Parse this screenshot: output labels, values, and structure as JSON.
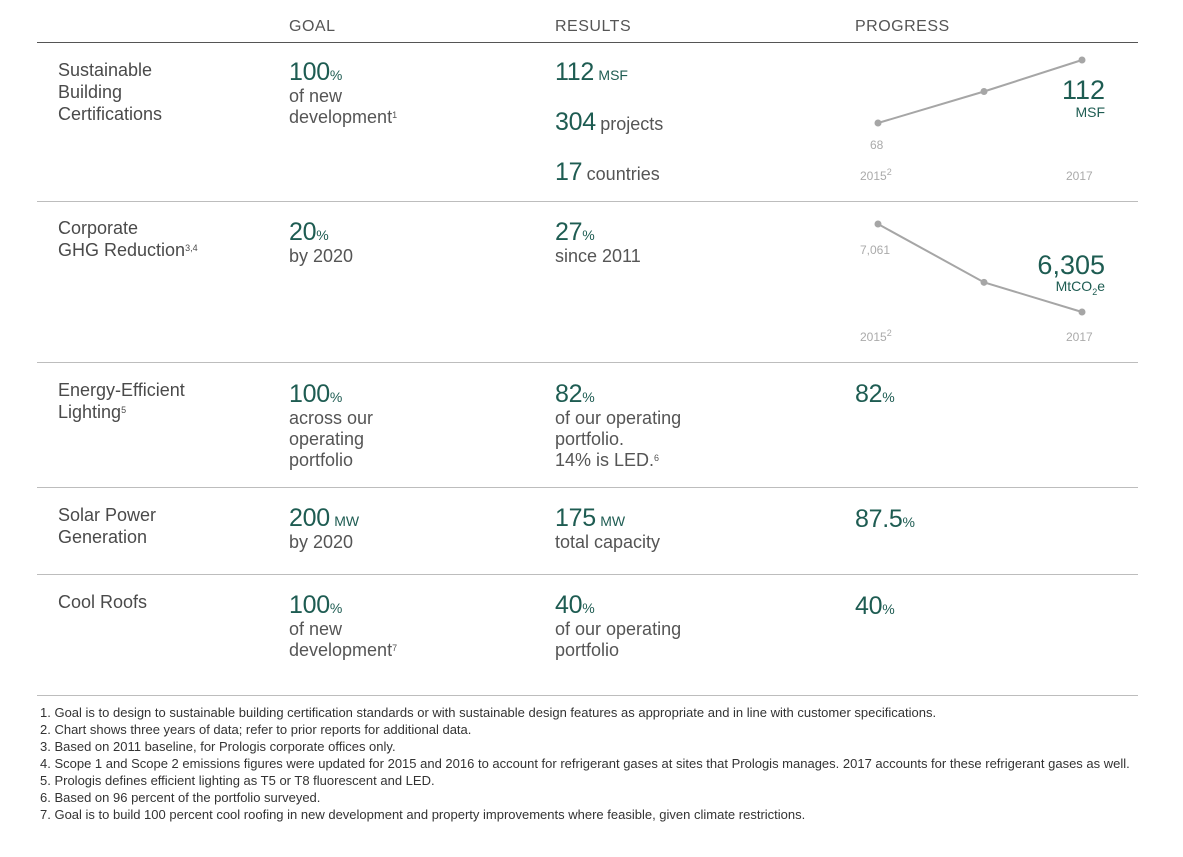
{
  "headers": {
    "goal": "GOAL",
    "results": "RESULTS",
    "progress": "PROGRESS"
  },
  "rows": {
    "certifications": {
      "label1": "Sustainable",
      "label2": "Building",
      "label3": "Certifications",
      "goal_value": "100",
      "goal_unit": "%",
      "goal_line1": "of new",
      "goal_line2": "development",
      "goal_sup": "1",
      "res1_value": "112",
      "res1_unit": "MSF",
      "res2_value": "304",
      "res2_text": "projects",
      "res3_value": "17",
      "res3_text": "countries",
      "chart_value": "112",
      "chart_unit": "MSF"
    },
    "ghg": {
      "label1": "Corporate",
      "label2": "GHG Reduction",
      "label_sup": "3,4",
      "goal_value": "20",
      "goal_unit": "%",
      "goal_line1": "by 2020",
      "res_value": "27",
      "res_unit": "%",
      "res_line1": "since 2011",
      "chart_value": "6,305",
      "chart_unit_a": "MtCO",
      "chart_unit_sub": "2",
      "chart_unit_b": "e"
    },
    "lighting": {
      "label1": "Energy-Efficient",
      "label2": "Lighting",
      "label_sup": "5",
      "goal_value": "100",
      "goal_unit": "%",
      "goal_line1": "across our",
      "goal_line2": "operating",
      "goal_line3": "portfolio",
      "res_value": "82",
      "res_unit": "%",
      "res_line1": "of our operating",
      "res_line2": "portfolio.",
      "res_line3": "14% is LED.",
      "res_sup": "6",
      "progress_value": "82",
      "progress_unit": "%"
    },
    "solar": {
      "label1": "Solar Power",
      "label2": "Generation",
      "goal_value": "200",
      "goal_unit": "MW",
      "goal_line1": "by 2020",
      "res_value": "175",
      "res_unit": "MW",
      "res_line1": "total capacity",
      "progress_value": "87.5",
      "progress_unit": "%"
    },
    "roofs": {
      "label1": "Cool Roofs",
      "goal_value": "100",
      "goal_unit": "%",
      "goal_line1": "of new",
      "goal_line2": "development",
      "goal_sup": "7",
      "res_value": "40",
      "res_unit": "%",
      "res_line1": "of our operating",
      "res_line2": "portfolio",
      "progress_value": "40",
      "progress_unit": "%"
    }
  },
  "chart_data": [
    {
      "type": "line",
      "x": [
        "2015",
        "2016",
        "2017"
      ],
      "tick_labels": {
        "start": "2015",
        "start_sup": "2",
        "end": "2017"
      },
      "series": [
        {
          "values": [
            68,
            90,
            112
          ]
        }
      ],
      "value_labels": {
        "start": "68"
      },
      "color": "#a6a6a6"
    },
    {
      "type": "line",
      "x": [
        "2015",
        "2016",
        "2017"
      ],
      "tick_labels": {
        "start": "2015",
        "start_sup": "2",
        "end": "2017"
      },
      "series": [
        {
          "values": [
            7061,
            6560,
            6305
          ]
        }
      ],
      "value_labels": {
        "start": "7,061"
      },
      "color": "#a6a6a6"
    }
  ],
  "footnotes": [
    "1.  Goal is to design to sustainable building certification standards or with sustainable design features as appropriate and in line with customer specifications.",
    "2.  Chart shows three years of data; refer to prior reports for additional data.",
    "3.  Based on 2011 baseline, for Prologis corporate offices only.",
    "4.  Scope 1 and Scope 2 emissions figures were updated for 2015 and 2016 to account for refrigerant gases at sites that Prologis manages. 2017 accounts for these refrigerant gases as well.",
    "5.  Prologis defines efficient lighting as T5 or T8 fluorescent and LED.",
    "6.  Based on 96 percent of the portfolio surveyed.",
    "7.  Goal is to build 100 percent cool roofing in new development and property improvements where feasible, given climate restrictions."
  ]
}
